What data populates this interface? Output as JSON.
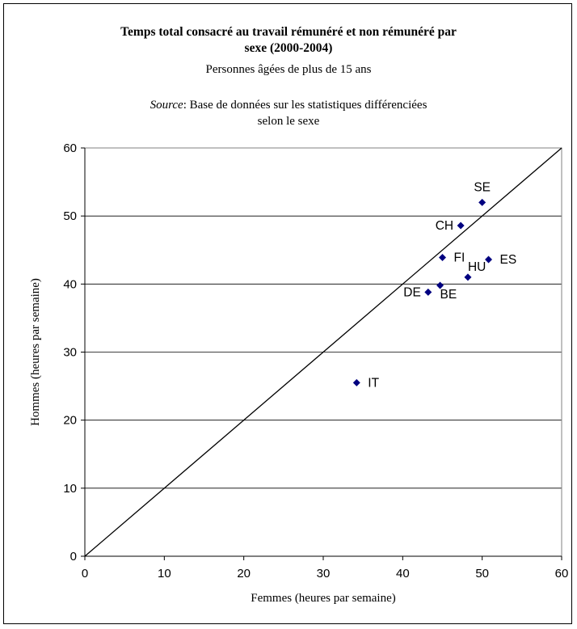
{
  "chart_data": {
    "type": "scatter",
    "title_line1": "Temps total consacré au travail rémunéré et non rémunéré par",
    "title_line2": "sexe (2000-2004)",
    "subtitle": "Personnes âgées de plus de 15 ans",
    "source_label": "Source",
    "source_text_line1": ": Base de données sur les statistiques différenciées",
    "source_text_line2": "selon le sexe",
    "xlabel": "Femmes (heures par semaine)",
    "ylabel": "Hommes (heures par semaine)",
    "xlim": [
      0,
      60
    ],
    "ylim": [
      0,
      60
    ],
    "xticks": [
      0,
      10,
      20,
      30,
      40,
      50,
      60
    ],
    "yticks": [
      0,
      10,
      20,
      30,
      40,
      50,
      60
    ],
    "grid": "horizontal",
    "marker_color": "#000080",
    "reference_line": {
      "from": [
        0,
        0
      ],
      "to": [
        60,
        60
      ]
    },
    "points": [
      {
        "label": "SE",
        "x": 50.0,
        "y": 52.0,
        "label_pos": "above"
      },
      {
        "label": "CH",
        "x": 47.3,
        "y": 48.6,
        "label_pos": "left"
      },
      {
        "label": "FI",
        "x": 45.0,
        "y": 43.9,
        "label_pos": "right"
      },
      {
        "label": "ES",
        "x": 50.8,
        "y": 43.6,
        "label_pos": "right"
      },
      {
        "label": "HU",
        "x": 48.2,
        "y": 41.0,
        "label_pos": "above-right"
      },
      {
        "label": "BE",
        "x": 44.7,
        "y": 39.8,
        "label_pos": "below-right"
      },
      {
        "label": "DE",
        "x": 43.2,
        "y": 38.8,
        "label_pos": "left"
      },
      {
        "label": "IT",
        "x": 34.2,
        "y": 25.5,
        "label_pos": "right"
      }
    ]
  }
}
